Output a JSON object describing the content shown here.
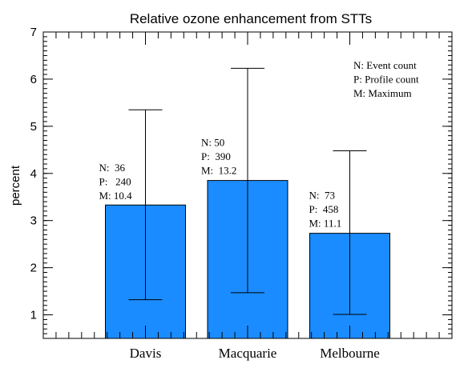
{
  "chart_data": {
    "type": "bar",
    "title": "Relative ozone enhancement from STTs",
    "xlabel": "",
    "ylabel": "percent",
    "ylim": [
      0.5,
      7
    ],
    "yticks": [
      1,
      2,
      3,
      4,
      5,
      6,
      7
    ],
    "categories": [
      "Davis",
      "Macquarie",
      "Melbourne"
    ],
    "values": [
      3.33,
      3.85,
      2.73
    ],
    "error_low": [
      1.32,
      1.47,
      1.01
    ],
    "error_high": [
      5.35,
      6.23,
      4.48
    ],
    "annotations": [
      {
        "category": "Davis",
        "n": "N:  36",
        "p": "P:   240",
        "m": "M: 10.4"
      },
      {
        "category": "Macquarie",
        "n": "N: 50",
        "p": "P:  390",
        "m": "M:  13.2"
      },
      {
        "category": "Melbourne",
        "n": "N:  73",
        "p": "P:  458",
        "m": "M: 11.1"
      }
    ],
    "legend": {
      "placement": "top-right",
      "lines": [
        "N: Event count",
        "P: Profile count",
        "M: Maximum"
      ]
    },
    "bar_color": "#1a8cff",
    "grid": false
  }
}
